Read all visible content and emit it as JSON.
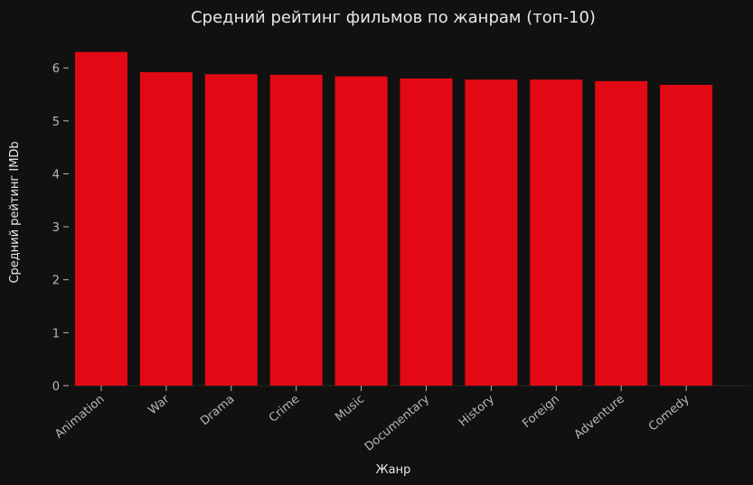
{
  "chart_data": {
    "type": "bar",
    "title": "Средний рейтинг фильмов по жанрам (топ-10)",
    "xlabel": "Жанр",
    "ylabel": "Средний рейтинг IMDb",
    "categories": [
      "Animation",
      "War",
      "Drama",
      "Crime",
      "Music",
      "Documentary",
      "History",
      "Foreign",
      "Adventure",
      "Comedy"
    ],
    "values": [
      6.3,
      5.92,
      5.88,
      5.87,
      5.84,
      5.8,
      5.78,
      5.78,
      5.75,
      5.68
    ],
    "yticks": [
      "0",
      "1",
      "2",
      "3",
      "4",
      "5",
      "6"
    ],
    "ylim": [
      0,
      6.6
    ],
    "grid": false,
    "bar_color": "#e30914",
    "background_color": "#111111"
  }
}
